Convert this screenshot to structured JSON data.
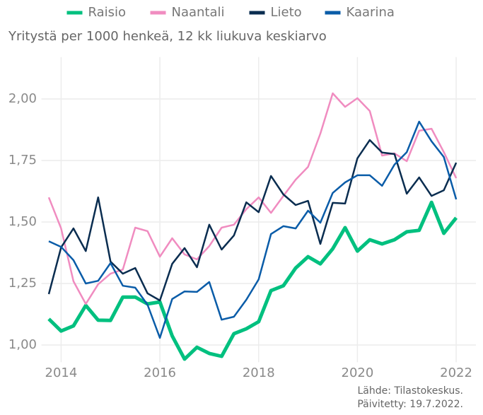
{
  "chart_data": {
    "type": "line",
    "subtitle": "Yritystä per 1000 henkeä, 12 kk liukuva keskiarvo",
    "caption": [
      "Lähde: Tilastokeskus.",
      "Päivitetty: 19.7.2022."
    ],
    "x": [
      2013.75,
      2014,
      2014.25,
      2014.5,
      2014.75,
      2015,
      2015.25,
      2015.5,
      2015.75,
      2016,
      2016.25,
      2016.5,
      2016.75,
      2017,
      2017.25,
      2017.5,
      2017.75,
      2018,
      2018.25,
      2018.5,
      2018.75,
      2019,
      2019.25,
      2019.5,
      2019.75,
      2020,
      2020.25,
      2020.5,
      2020.75,
      2021,
      2021.25,
      2021.5,
      2021.75,
      2022
    ],
    "series": [
      {
        "name": "Raisio",
        "color": "#00c07f",
        "values": [
          1.106,
          1.057,
          1.078,
          1.161,
          1.101,
          1.1,
          1.195,
          1.195,
          1.167,
          1.175,
          1.037,
          0.943,
          0.991,
          0.966,
          0.954,
          1.046,
          1.066,
          1.095,
          1.221,
          1.241,
          1.313,
          1.359,
          1.33,
          1.391,
          1.477,
          1.382,
          1.428,
          1.411,
          1.428,
          1.46,
          1.466,
          1.58,
          1.454,
          1.517
        ]
      },
      {
        "name": "Naantali",
        "color": "#f08cc0",
        "values": [
          1.6,
          1.474,
          1.259,
          1.167,
          1.247,
          1.29,
          1.307,
          1.477,
          1.463,
          1.359,
          1.434,
          1.368,
          1.348,
          1.402,
          1.477,
          1.489,
          1.552,
          1.6,
          1.537,
          1.606,
          1.672,
          1.724,
          1.859,
          2.023,
          1.968,
          2.003,
          1.951,
          1.77,
          1.779,
          1.747,
          1.871,
          1.879,
          1.784,
          1.678
        ]
      },
      {
        "name": "Lieto",
        "color": "#0a2d50",
        "values": [
          1.207,
          1.397,
          1.474,
          1.382,
          1.6,
          1.339,
          1.29,
          1.313,
          1.21,
          1.181,
          1.33,
          1.394,
          1.316,
          1.489,
          1.388,
          1.445,
          1.58,
          1.54,
          1.687,
          1.612,
          1.569,
          1.586,
          1.411,
          1.578,
          1.575,
          1.759,
          1.833,
          1.782,
          1.776,
          1.615,
          1.681,
          1.606,
          1.629,
          1.741
        ]
      },
      {
        "name": "Kaarina",
        "color": "#0a5ca8",
        "values": [
          1.422,
          1.399,
          1.345,
          1.25,
          1.261,
          1.333,
          1.241,
          1.233,
          1.164,
          1.029,
          1.187,
          1.218,
          1.216,
          1.256,
          1.103,
          1.115,
          1.184,
          1.267,
          1.451,
          1.483,
          1.474,
          1.546,
          1.497,
          1.618,
          1.661,
          1.69,
          1.69,
          1.647,
          1.733,
          1.784,
          1.908,
          1.828,
          1.764,
          1.592
        ]
      }
    ],
    "xlim": [
      2013.6,
      2022.4
    ],
    "xticks": [
      2014,
      2016,
      2018,
      2020,
      2022
    ],
    "ylim": [
      0.93,
      2.17
    ],
    "yticks": [
      {
        "value": 1,
        "label": "1,00"
      },
      {
        "value": 1.25,
        "label": "1,25"
      },
      {
        "value": 1.5,
        "label": "1,50"
      },
      {
        "value": 1.75,
        "label": "1,75"
      },
      {
        "value": 2,
        "label": "2,00"
      }
    ],
    "grid": true,
    "legend": "top"
  }
}
